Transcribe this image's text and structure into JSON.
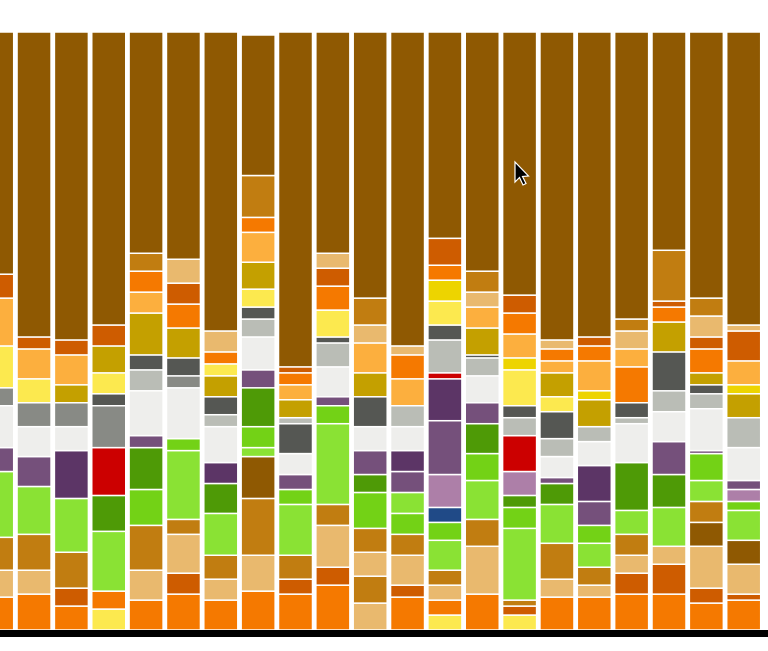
{
  "chart_data": {
    "type": "bar",
    "stacked": true,
    "ylim": [
      0,
      100
    ],
    "columns": [
      {
        "colors": [
          "#f57900",
          "#e9b96e",
          "#c17d11",
          "#8ae234",
          "#75507b",
          "#eeeeec",
          "#888a85",
          "#fce94f",
          "#fcaf3e",
          "#ce5c00",
          "#8f5902"
        ],
        "values": [
          5.5,
          4.5,
          5.5,
          11,
          4,
          7,
          3,
          7,
          8,
          4,
          40.5
        ]
      },
      {
        "colors": [
          "#f57900",
          "#e9b96e",
          "#c17d11",
          "#8ae234",
          "#75507b",
          "#eeeeec",
          "#888a85",
          "#fce94f",
          "#fcaf3e",
          "#ce5c00",
          "#8f5902"
        ],
        "values": [
          6,
          4,
          6,
          8,
          5,
          5,
          4,
          4,
          5,
          2,
          51
        ]
      },
      {
        "colors": [
          "#f57900",
          "#ce5c00",
          "#c17d11",
          "#8ae234",
          "#5c3566",
          "#eeeeec",
          "#888a85",
          "#c4a000",
          "#fcaf3e",
          "#ce5c00",
          "#8f5902"
        ],
        "values": [
          4,
          3,
          6,
          9,
          8,
          4,
          4,
          3,
          5,
          2.5,
          51.5
        ]
      },
      {
        "colors": [
          "#fce94f",
          "#f57900",
          "#8ae234",
          "#4e9a06",
          "#cc0000",
          "#888a85",
          "#555753",
          "#fce94f",
          "#c4a000",
          "#ce5c00",
          "#8f5902"
        ],
        "values": [
          3.5,
          3,
          10,
          6,
          8,
          7,
          2,
          3.5,
          4.5,
          3.5,
          49
        ]
      },
      {
        "colors": [
          "#f57900",
          "#e9b96e",
          "#c17d11",
          "#73d216",
          "#4e9a06",
          "#75507b",
          "#eeeeec",
          "#babdb6",
          "#555753",
          "#c4a000",
          "#fcaf3e",
          "#f57900",
          "#c17d11",
          "#8f5902"
        ],
        "values": [
          5,
          5,
          7.5,
          6,
          7,
          2,
          7.5,
          3.5,
          2.5,
          7,
          3.5,
          3.5,
          3,
          37
        ]
      },
      {
        "colors": [
          "#f57900",
          "#ce5c00",
          "#e9b96e",
          "#c17d11",
          "#8ae234",
          "#73d216",
          "#eeeeec",
          "#888a85",
          "#555753",
          "#c4a000",
          "#f57900",
          "#ce5c00",
          "#e9b96e",
          "#8f5902"
        ],
        "values": [
          6,
          3.5,
          6.5,
          2.5,
          11.5,
          2,
          8.5,
          2,
          3,
          5,
          4,
          3.5,
          4,
          38
        ]
      },
      {
        "colors": [
          "#f57900",
          "#e9b96e",
          "#c17d11",
          "#8ae234",
          "#4e9a06",
          "#5c3566",
          "#eeeeec",
          "#babdb6",
          "#555753",
          "#c4a000",
          "#fce94f",
          "#f57900",
          "#e9b96e",
          "#8f5902"
        ],
        "values": [
          5,
          3.5,
          4,
          7,
          5,
          3.5,
          6,
          2,
          3,
          3.5,
          2,
          2,
          3.5,
          50
        ]
      },
      {
        "colors": [
          "#f57900",
          "#e9b96e",
          "#c17d11",
          "#8f5902",
          "#8ae234",
          "#73d216",
          "#4e9a06",
          "#75507b",
          "#eeeeec",
          "#babdb6",
          "#555753",
          "#fce94f",
          "#c4a000",
          "#fcaf3e",
          "#f57900",
          "#c17d11",
          "#8f5902"
        ],
        "values": [
          6.5,
          6,
          9.5,
          7,
          1.5,
          3.5,
          6.5,
          3,
          5.5,
          3,
          2,
          3,
          4.5,
          5,
          2.5,
          7,
          23.5
        ]
      },
      {
        "colors": [
          "#f57900",
          "#ce5c00",
          "#c17d11",
          "#8ae234",
          "#73d216",
          "#75507b",
          "#eeeeec",
          "#555753",
          "#babdb6",
          "#c4a000",
          "#fcaf3e",
          "#f57900",
          "#ce5c00",
          "#8f5902"
        ],
        "values": [
          6,
          2.5,
          4,
          8.5,
          2.5,
          2.5,
          3.5,
          5,
          1,
          3,
          2.5,
          2,
          1,
          56
        ]
      },
      {
        "colors": [
          "#f57900",
          "#ce5c00",
          "#e9b96e",
          "#c17d11",
          "#8ae234",
          "#73d216",
          "#75507b",
          "#eeeeec",
          "#babdb6",
          "#555753",
          "#fce94f",
          "#f57900",
          "#ce5c00",
          "#e9b96e",
          "#8f5902"
        ],
        "values": [
          7.5,
          3,
          7,
          3.5,
          13.5,
          3,
          1.5,
          5,
          4,
          1,
          4.5,
          4,
          3,
          2.5,
          37
        ]
      },
      {
        "colors": [
          "#e9b96e",
          "#c17d11",
          "#e9b96e",
          "#c17d11",
          "#73d216",
          "#4e9a06",
          "#75507b",
          "#eeeeec",
          "#555753",
          "#c4a000",
          "#fcaf3e",
          "#e9b96e",
          "#c17d11",
          "#8f5902"
        ],
        "values": [
          4.5,
          4.5,
          4,
          4,
          6,
          3,
          4,
          4,
          5,
          4,
          5,
          3,
          4.5,
          44.5
        ]
      },
      {
        "colors": [
          "#f57900",
          "#ce5c00",
          "#e9b96e",
          "#c17d11",
          "#73d216",
          "#8ae234",
          "#75507b",
          "#5c3566",
          "#eeeeec",
          "#babdb6",
          "#fcaf3e",
          "#f57900",
          "#e9b96e",
          "#8f5902"
        ],
        "values": [
          5.5,
          2,
          5,
          3.5,
          3.5,
          3.5,
          3.5,
          3.5,
          4,
          3.5,
          4.5,
          4,
          1.5,
          52.5
        ]
      },
      {
        "colors": [
          "#fce94f",
          "#f57900",
          "#e9b96e",
          "#c17d11",
          "#8ae234",
          "#73d216",
          "#204a87",
          "#ad7fa8",
          "#75507b",
          "#5c3566",
          "#cc0000",
          "#babdb6",
          "#555753",
          "#fce94f",
          "#edd400",
          "#f57900",
          "#ce5c00",
          "#8f5902"
        ],
        "values": [
          2.5,
          2.5,
          2.5,
          2.5,
          5,
          3,
          2.5,
          5.5,
          9,
          7,
          1,
          5.5,
          2.5,
          4,
          3.5,
          2.5,
          4.5,
          34.5
        ]
      },
      {
        "colors": [
          "#f57900",
          "#e9b96e",
          "#c17d11",
          "#8ae234",
          "#73d216",
          "#4e9a06",
          "#75507b",
          "#eeeeec",
          "#babdb6",
          "#555753",
          "#c4a000",
          "#fcaf3e",
          "#e9b96e",
          "#c17d11",
          "#8f5902"
        ],
        "values": [
          6,
          8,
          4.5,
          6.5,
          4.5,
          5,
          3.5,
          4.5,
          3,
          0.5,
          4.5,
          3.5,
          2.5,
          3.5,
          40
        ]
      },
      {
        "colors": [
          "#fce94f",
          "#ce5c00",
          "#c17d11",
          "#8ae234",
          "#73d216",
          "#4e9a06",
          "#ad7fa8",
          "#cc0000",
          "#babdb6",
          "#555753",
          "#fce94f",
          "#edd400",
          "#fcaf3e",
          "#f57900",
          "#ce5c00",
          "#8f5902"
        ],
        "values": [
          2.5,
          1.5,
          1,
          12,
          3.5,
          2,
          4,
          6,
          3,
          2,
          6,
          2,
          4,
          3.5,
          3,
          44
        ]
      },
      {
        "colors": [
          "#f57900",
          "#e9b96e",
          "#c17d11",
          "#8ae234",
          "#4e9a06",
          "#75507b",
          "#eeeeec",
          "#babdb6",
          "#555753",
          "#fce94f",
          "#c4a000",
          "#fcaf3e",
          "#f57900",
          "#e9b96e",
          "#8f5902"
        ],
        "values": [
          5.5,
          3,
          6,
          6.5,
          3.5,
          1,
          3.5,
          3,
          4.5,
          2.5,
          4,
          2,
          2,
          1.5,
          51.5
        ]
      },
      {
        "colors": [
          "#f57900",
          "#e9b96e",
          "#c17d11",
          "#8ae234",
          "#73d216",
          "#75507b",
          "#5c3566",
          "#eeeeec",
          "#babdb6",
          "#c4a000",
          "#edd400",
          "#fcaf3e",
          "#f57900",
          "#ce5c00",
          "#8f5902"
        ],
        "values": [
          5.5,
          2,
          3,
          4,
          3,
          4,
          6,
          4,
          2.5,
          4.5,
          1.5,
          5,
          2.5,
          1.5,
          51
        ]
      },
      {
        "colors": [
          "#f57900",
          "#ce5c00",
          "#e9b96e",
          "#c17d11",
          "#8ae234",
          "#4e9a06",
          "#eeeeec",
          "#babdb6",
          "#555753",
          "#f57900",
          "#fcaf3e",
          "#e9b96e",
          "#c17d11",
          "#8f5902"
        ],
        "values": [
          6,
          3.5,
          3,
          3.5,
          4,
          8,
          6.5,
          1,
          2.5,
          6,
          3,
          3,
          2,
          48
        ]
      },
      {
        "colors": [
          "#f57900",
          "#ce5c00",
          "#e9b96e",
          "#8ae234",
          "#4e9a06",
          "#75507b",
          "#eeeeec",
          "#babdb6",
          "#555753",
          "#c4a000",
          "#f57900",
          "#ce5c00",
          "#c17d11",
          "#8f5902"
        ],
        "values": [
          6,
          5,
          3,
          6.5,
          5.5,
          5.5,
          5,
          3.5,
          6.5,
          5,
          2.5,
          1,
          8.5,
          36.5
        ]
      },
      {
        "colors": [
          "#f57900",
          "#ce5c00",
          "#e9b96e",
          "#8f5902",
          "#c17d11",
          "#8ae234",
          "#73d216",
          "#75507b",
          "#eeeeec",
          "#babdb6",
          "#555753",
          "#c4a000",
          "#f57900",
          "#ce5c00",
          "#e9b96e",
          "#c17d11",
          "#8f5902"
        ],
        "values": [
          4.5,
          2.5,
          7,
          4,
          3.5,
          3.5,
          4.5,
          0.5,
          7,
          2.5,
          1.5,
          2,
          4,
          2,
          3.5,
          3,
          44.5
        ]
      },
      {
        "colors": [
          "#f57900",
          "#ce5c00",
          "#e9b96e",
          "#8f5902",
          "#8ae234",
          "#73d216",
          "#ad7fa8",
          "#75507b",
          "#eeeeec",
          "#babdb6",
          "#c4a000",
          "#edd400",
          "#fcaf3e",
          "#ce5c00",
          "#e9b96e",
          "#8f5902"
        ],
        "values": [
          5,
          1,
          5,
          4,
          5,
          1.5,
          2,
          1.5,
          5.5,
          5,
          4,
          1.5,
          4,
          5,
          1,
          49
        ]
      }
    ]
  }
}
